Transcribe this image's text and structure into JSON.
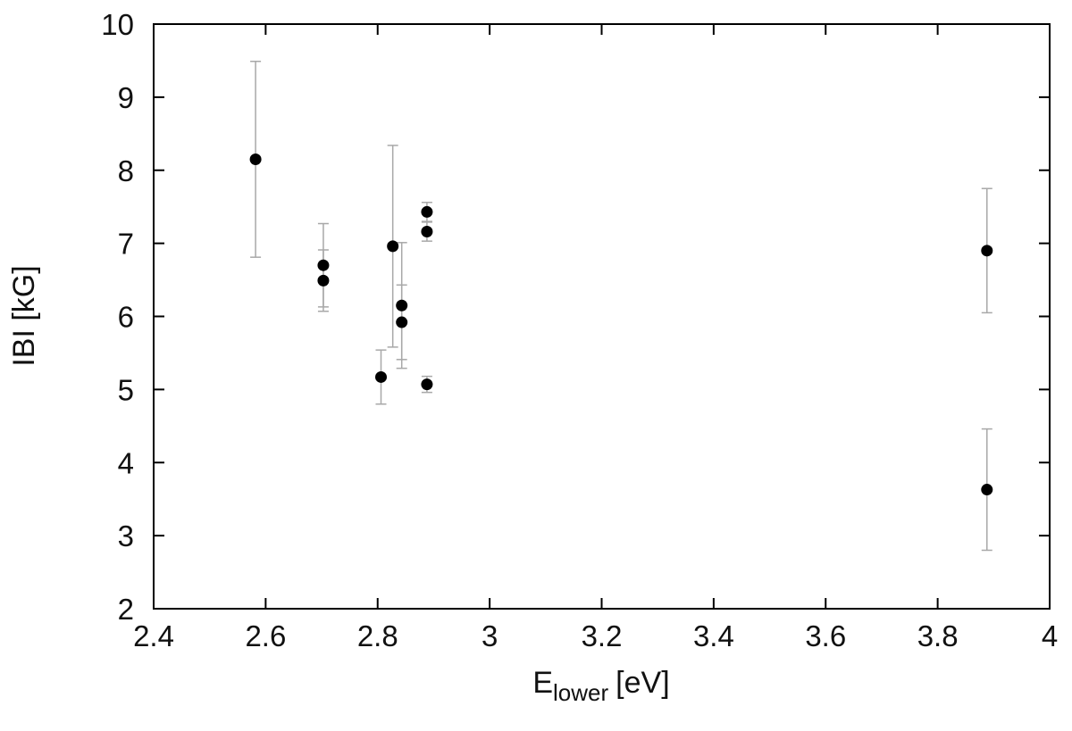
{
  "chart_data": {
    "type": "scatter",
    "title": "",
    "xlabel": {
      "main": "E",
      "subscript": "lower",
      "unit": "[eV]"
    },
    "ylabel": "IBI [kG]",
    "xlim": [
      2.4,
      4.0
    ],
    "ylim": [
      2,
      10
    ],
    "xticks": [
      2.4,
      2.6,
      2.8,
      3.0,
      3.2,
      3.4,
      3.6,
      3.8,
      4.0
    ],
    "xtick_labels": [
      "2.4",
      "2.6",
      "2.8",
      "3",
      "3.2",
      "3.4",
      "3.6",
      "3.8",
      "4"
    ],
    "yticks": [
      2,
      3,
      4,
      5,
      6,
      7,
      8,
      9,
      10
    ],
    "ytick_labels": [
      "2",
      "3",
      "4",
      "5",
      "6",
      "7",
      "8",
      "9",
      "10"
    ],
    "grid": false,
    "legend": "none",
    "marker_color": "#000000",
    "errorbar_color": "#a8a8a8",
    "points": [
      {
        "x": 2.582,
        "y": 8.15,
        "err": 1.34
      },
      {
        "x": 2.703,
        "y": 6.7,
        "err": 0.57
      },
      {
        "x": 2.703,
        "y": 6.49,
        "err": 0.42
      },
      {
        "x": 2.806,
        "y": 5.17,
        "err": 0.37
      },
      {
        "x": 2.827,
        "y": 6.96,
        "err": 1.38
      },
      {
        "x": 2.843,
        "y": 6.15,
        "err": 0.86
      },
      {
        "x": 2.843,
        "y": 5.92,
        "err": 0.51
      },
      {
        "x": 2.888,
        "y": 7.43,
        "err": 0.13
      },
      {
        "x": 2.888,
        "y": 7.16,
        "err": 0.13
      },
      {
        "x": 2.888,
        "y": 5.07,
        "err": 0.11
      },
      {
        "x": 3.888,
        "y": 6.9,
        "err": 0.85
      },
      {
        "x": 3.888,
        "y": 3.63,
        "err": 0.83
      }
    ]
  }
}
